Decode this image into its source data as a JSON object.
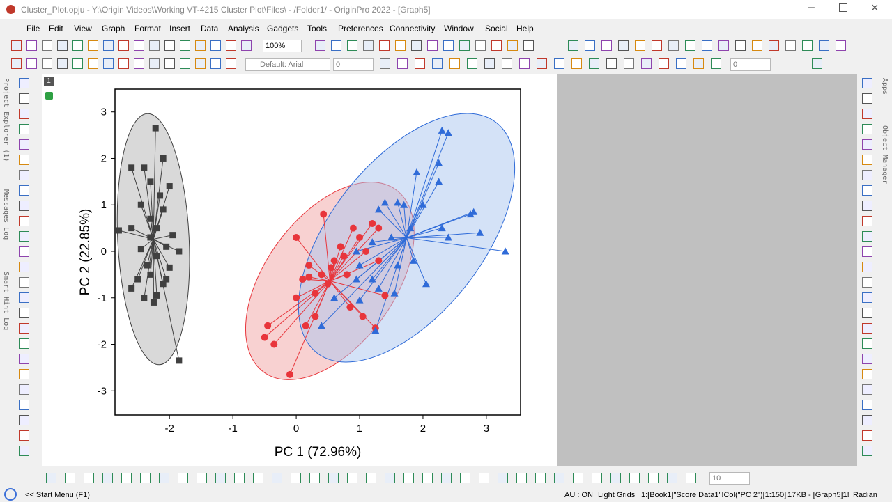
{
  "window": {
    "title": "Cluster_Plot.opju - Y:\\Origin Videos\\Working VT-4215 Cluster Plot\\Files\\ - /Folder1/ - OriginPro 2022 - [Graph5]"
  },
  "menu": [
    "File",
    "Edit",
    "View",
    "Graph",
    "Format",
    "Insert",
    "Data",
    "Analysis",
    "Gadgets",
    "Tools",
    "Preferences",
    "Connectivity",
    "Window",
    "Social",
    "Help"
  ],
  "toolbar": {
    "zoom": "100%",
    "font": "Default: Arial",
    "font_size": "0",
    "line_width": "0",
    "bottom_size": "10"
  },
  "left_panels": [
    "Project Explorer (1)",
    "Messages Log",
    "Smart Hint Log"
  ],
  "right_panels": [
    "Apps",
    "Object Manager"
  ],
  "layer": "1",
  "status_bar": {
    "start": "<< Start Menu (F1)",
    "au": "AU : ON",
    "grids": "Light Grids",
    "selection": "1:[Book1]\"Score Data1\"!Col(\"PC 2\")[1:150]",
    "size": "17KB - [Graph5]1!",
    "unit": "Radian"
  },
  "chart_data": {
    "type": "scatter",
    "x_label": "PC 1 (72.96%)",
    "y_label": "PC 2 (22.85%)",
    "xlim": [
      -2.86,
      3.54
    ],
    "ylim": [
      -3.52,
      3.49
    ],
    "xticks": [
      -2,
      -1,
      0,
      1,
      2,
      3
    ],
    "yticks": [
      -3,
      -2,
      -1,
      0,
      1,
      2,
      3
    ],
    "series": [
      {
        "color": "#404040",
        "marker": "square",
        "fill": "#b4b4b4",
        "x": [
          -2.22,
          -2.1,
          -2.4,
          -2.6,
          -2.3,
          -2.0,
          -2.15,
          -2.45,
          -2.1,
          -2.3,
          -2.2,
          -2.6,
          -2.8,
          -1.95,
          -2.3,
          -2.05,
          -2.45,
          -2.2,
          -1.85,
          -2.35,
          -2.0,
          -2.3,
          -2.1,
          -2.6,
          -2.4,
          -2.2,
          -2.05,
          -2.5,
          -1.85,
          -2.25
        ],
        "values": [
          2.65,
          2.0,
          1.8,
          1.8,
          1.5,
          1.4,
          1.2,
          1.0,
          0.9,
          0.7,
          0.5,
          0.5,
          0.45,
          0.35,
          0.3,
          0.1,
          0.05,
          -0.1,
          0.0,
          -0.3,
          -0.35,
          -0.5,
          -0.7,
          -0.8,
          -1.0,
          -0.95,
          -0.6,
          -0.6,
          -2.35,
          -1.1
        ]
      },
      {
        "color": "#e8353b",
        "marker": "circle",
        "fill": "#f2a3a3",
        "x": [
          0.43,
          0.0,
          0.2,
          0.1,
          0.0,
          -0.45,
          -0.5,
          -0.35,
          -0.1,
          0.15,
          0.3,
          0.5,
          0.6,
          0.7,
          0.9,
          1.0,
          1.2,
          1.3,
          1.1,
          1.3,
          0.8,
          1.05,
          1.25,
          0.3,
          0.55,
          0.75,
          0.4,
          0.2,
          1.4,
          0.85
        ],
        "values": [
          0.8,
          0.3,
          -0.3,
          -0.6,
          -1.0,
          -1.6,
          -1.85,
          -2.0,
          -2.65,
          -1.6,
          -1.4,
          -0.7,
          -0.2,
          0.1,
          0.5,
          0.3,
          0.6,
          0.5,
          0.0,
          -0.2,
          -0.5,
          -1.4,
          -1.65,
          -0.9,
          -0.35,
          -0.1,
          -0.5,
          -0.55,
          -0.95,
          -1.2
        ]
      },
      {
        "color": "#2f6bd8",
        "marker": "triangle",
        "fill": "#a9c5ef",
        "x": [
          2.3,
          2.4,
          2.25,
          2.25,
          1.9,
          1.6,
          1.4,
          1.3,
          1.7,
          2.0,
          2.8,
          2.75,
          2.3,
          2.9,
          3.3,
          2.4,
          1.8,
          1.5,
          1.2,
          0.95,
          1.0,
          1.2,
          1.3,
          1.6,
          1.85,
          2.05,
          1.55,
          0.4,
          1.25,
          1.0,
          0.95,
          0.6
        ],
        "values": [
          2.6,
          2.55,
          1.9,
          1.5,
          1.7,
          1.05,
          1.05,
          0.9,
          1.0,
          1.0,
          0.85,
          0.8,
          0.5,
          0.4,
          0.0,
          0.3,
          0.5,
          0.3,
          0.2,
          0.0,
          -0.3,
          -0.6,
          -0.8,
          -0.3,
          -0.2,
          -0.7,
          -0.9,
          -1.6,
          -1.7,
          -1.05,
          -0.6,
          -1.0
        ]
      }
    ]
  }
}
